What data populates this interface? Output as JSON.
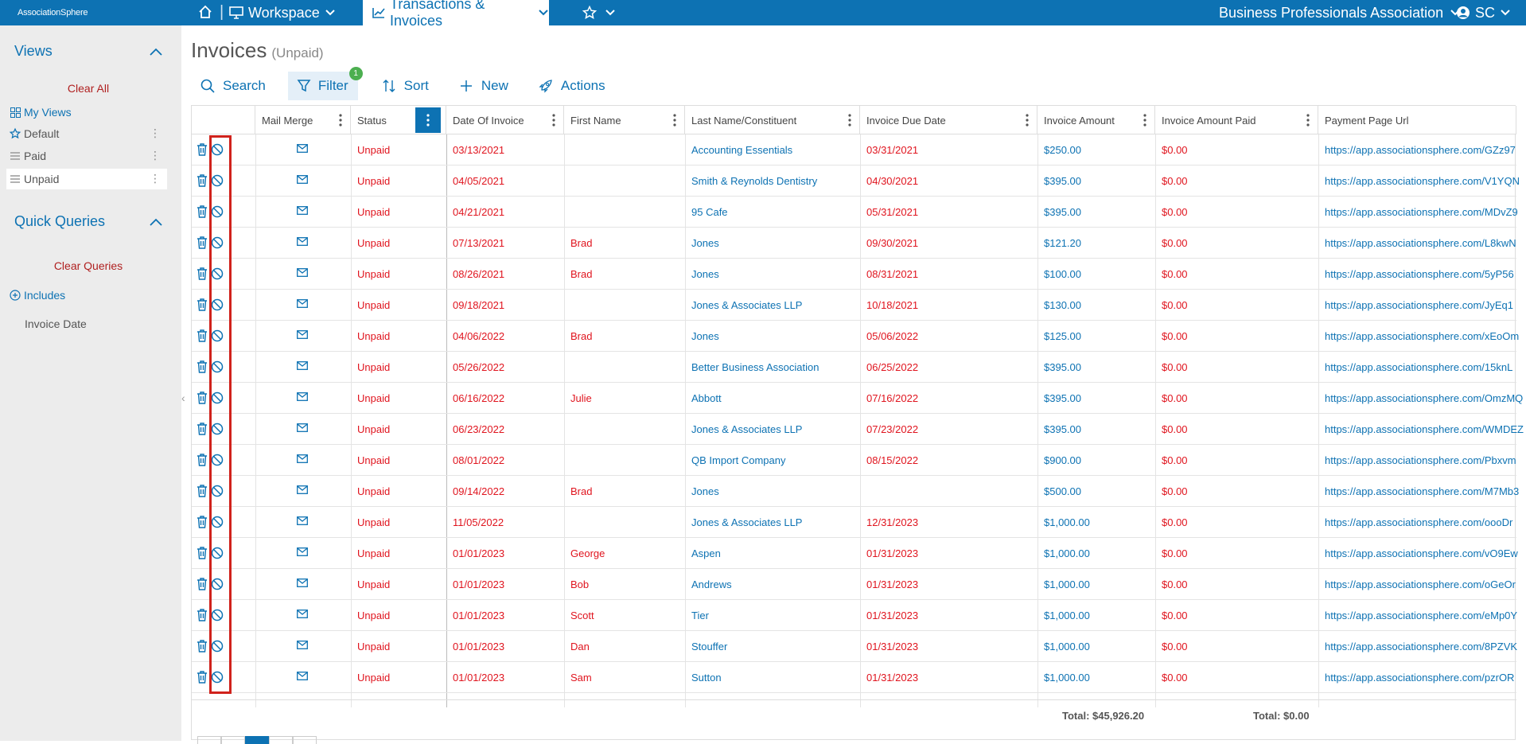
{
  "topnav": {
    "logo_text": "AssociationSphere",
    "workspace": "Workspace",
    "transactions": "Transactions & Invoices",
    "org": "Business Professionals Association",
    "user": "SC"
  },
  "sidebar": {
    "views_title": "Views",
    "clear_all": "Clear All",
    "my_views": "My Views",
    "views": [
      "Default",
      "Paid",
      "Unpaid"
    ],
    "quick_title": "Quick Queries",
    "clear_queries": "Clear Queries",
    "includes": "Includes",
    "invoice_date": "Invoice Date"
  },
  "page": {
    "title": "Invoices",
    "subtitle": "(Unpaid)"
  },
  "toolbar": {
    "search": "Search",
    "filter": "Filter",
    "filter_badge": "1",
    "sort": "Sort",
    "new": "New",
    "actions": "Actions"
  },
  "columns": [
    "Mail Merge",
    "Status",
    "Date Of Invoice",
    "First Name",
    "Last Name/Constituent",
    "Invoice Due Date",
    "Invoice Amount",
    "Invoice Amount Paid",
    "Payment Page Url"
  ],
  "rows": [
    {
      "status": "Unpaid",
      "date": "03/13/2021",
      "first": "",
      "last": "Accounting Essentials",
      "due": "03/31/2021",
      "amount": "$250.00",
      "paid": "$0.00",
      "url": "https://app.associationsphere.com/GZz97"
    },
    {
      "status": "Unpaid",
      "date": "04/05/2021",
      "first": "",
      "last": "Smith & Reynolds Dentistry",
      "due": "04/30/2021",
      "amount": "$395.00",
      "paid": "$0.00",
      "url": "https://app.associationsphere.com/V1YQN"
    },
    {
      "status": "Unpaid",
      "date": "04/21/2021",
      "first": "",
      "last": "95 Cafe",
      "due": "05/31/2021",
      "amount": "$395.00",
      "paid": "$0.00",
      "url": "https://app.associationsphere.com/MDvZ9"
    },
    {
      "status": "Unpaid",
      "date": "07/13/2021",
      "first": "Brad",
      "last": "Jones",
      "due": "09/30/2021",
      "amount": "$121.20",
      "paid": "$0.00",
      "url": "https://app.associationsphere.com/L8kwN"
    },
    {
      "status": "Unpaid",
      "date": "08/26/2021",
      "first": "Brad",
      "last": "Jones",
      "due": "08/31/2021",
      "amount": "$100.00",
      "paid": "$0.00",
      "url": "https://app.associationsphere.com/5yP56"
    },
    {
      "status": "Unpaid",
      "date": "09/18/2021",
      "first": "",
      "last": "Jones & Associates LLP",
      "due": "10/18/2021",
      "amount": "$130.00",
      "paid": "$0.00",
      "url": "https://app.associationsphere.com/JyEq1"
    },
    {
      "status": "Unpaid",
      "date": "04/06/2022",
      "first": "Brad",
      "last": "Jones",
      "due": "05/06/2022",
      "amount": "$125.00",
      "paid": "$0.00",
      "url": "https://app.associationsphere.com/xEoOm"
    },
    {
      "status": "Unpaid",
      "date": "05/26/2022",
      "first": "",
      "last": "Better Business Association",
      "due": "06/25/2022",
      "amount": "$395.00",
      "paid": "$0.00",
      "url": "https://app.associationsphere.com/15knL"
    },
    {
      "status": "Unpaid",
      "date": "06/16/2022",
      "first": "Julie",
      "last": "Abbott",
      "due": "07/16/2022",
      "amount": "$395.00",
      "paid": "$0.00",
      "url": "https://app.associationsphere.com/OmzMQ"
    },
    {
      "status": "Unpaid",
      "date": "06/23/2022",
      "first": "",
      "last": "Jones & Associates LLP",
      "due": "07/23/2022",
      "amount": "$395.00",
      "paid": "$0.00",
      "url": "https://app.associationsphere.com/WMDEZ"
    },
    {
      "status": "Unpaid",
      "date": "08/01/2022",
      "first": "",
      "last": "QB Import Company",
      "due": "08/15/2022",
      "amount": "$900.00",
      "paid": "$0.00",
      "url": "https://app.associationsphere.com/Pbxvm"
    },
    {
      "status": "Unpaid",
      "date": "09/14/2022",
      "first": "Brad",
      "last": "Jones",
      "due": "",
      "amount": "$500.00",
      "paid": "$0.00",
      "url": "https://app.associationsphere.com/M7Mb3"
    },
    {
      "status": "Unpaid",
      "date": "11/05/2022",
      "first": "",
      "last": "Jones & Associates LLP",
      "due": "12/31/2023",
      "amount": "$1,000.00",
      "paid": "$0.00",
      "url": "https://app.associationsphere.com/oooDr"
    },
    {
      "status": "Unpaid",
      "date": "01/01/2023",
      "first": "George",
      "last": "Aspen",
      "due": "01/31/2023",
      "amount": "$1,000.00",
      "paid": "$0.00",
      "url": "https://app.associationsphere.com/vO9Ew"
    },
    {
      "status": "Unpaid",
      "date": "01/01/2023",
      "first": "Bob",
      "last": "Andrews",
      "due": "01/31/2023",
      "amount": "$1,000.00",
      "paid": "$0.00",
      "url": "https://app.associationsphere.com/oGeOr"
    },
    {
      "status": "Unpaid",
      "date": "01/01/2023",
      "first": "Scott",
      "last": "Tier",
      "due": "01/31/2023",
      "amount": "$1,000.00",
      "paid": "$0.00",
      "url": "https://app.associationsphere.com/eMp0Y"
    },
    {
      "status": "Unpaid",
      "date": "01/01/2023",
      "first": "Dan",
      "last": "Stouffer",
      "due": "01/31/2023",
      "amount": "$1,000.00",
      "paid": "$0.00",
      "url": "https://app.associationsphere.com/8PZVK"
    },
    {
      "status": "Unpaid",
      "date": "01/01/2023",
      "first": "Sam",
      "last": "Sutton",
      "due": "01/31/2023",
      "amount": "$1,000.00",
      "paid": "$0.00",
      "url": "https://app.associationsphere.com/pzrOR"
    }
  ],
  "totals": {
    "amount": "Total: $45,926.20",
    "paid": "Total: $0.00"
  },
  "colors": {
    "brand": "#0d72b3",
    "status_red": "#e0141e",
    "highlight": "#d0221c",
    "badge": "#4caf50"
  }
}
